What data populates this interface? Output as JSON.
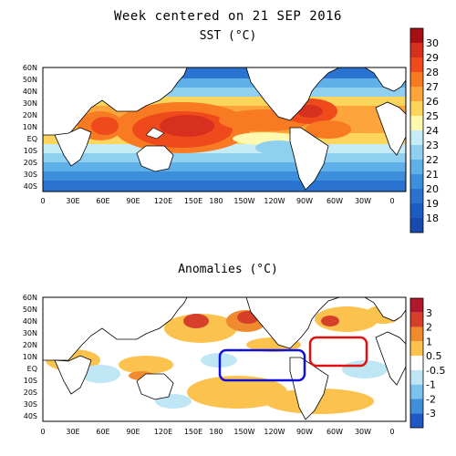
{
  "header": {
    "title": "Week centered on 21 SEP 2016",
    "subtitle": "SST (°C)"
  },
  "anomaly_header": {
    "title": "Anomalies (°C)"
  },
  "axes": {
    "lat_labels": [
      "60N",
      "50N",
      "40N",
      "30N",
      "20N",
      "10N",
      "EQ",
      "10S",
      "20S",
      "30S",
      "40S"
    ],
    "lon_labels": [
      "0",
      "30E",
      "60E",
      "90E",
      "120E",
      "150E",
      "180",
      "150W",
      "120W",
      "90W",
      "60W",
      "30W",
      "0"
    ]
  },
  "sst_colorbar": {
    "labels": [
      "30",
      "29",
      "28",
      "27",
      "26",
      "25",
      "24",
      "23",
      "22",
      "21",
      "20",
      "19",
      "18"
    ],
    "colors": [
      "#a50f15",
      "#d7301f",
      "#ef4a1c",
      "#f87a22",
      "#fba53a",
      "#fdd45c",
      "#fff9b0",
      "#c6ecf7",
      "#8fd0f0",
      "#5fb0e8",
      "#3d8fdc",
      "#2a73d0",
      "#1d5cc2",
      "#184aaf"
    ]
  },
  "anomaly_colorbar": {
    "labels": [
      "3",
      "2",
      "1",
      "0.5",
      "-0.5",
      "-1",
      "-2",
      "-3"
    ],
    "colors": [
      "#b2182b",
      "#d6402a",
      "#f08a2e",
      "#fcc24e",
      "#ffffff",
      "#bfe6f5",
      "#7dc2ec",
      "#3f8fdb",
      "#2059c4"
    ]
  },
  "annotations": {
    "blue_box_color": "#1010dd",
    "red_box_color": "#e01010"
  }
}
